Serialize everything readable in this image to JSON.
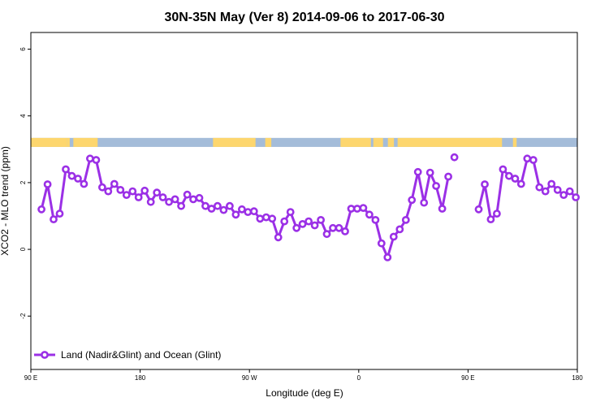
{
  "chart_data": {
    "type": "line",
    "title": "30N-35N May (Ver 8)   2014-09-06 to 2017-06-30",
    "xlabel": "Longitude (deg E)",
    "ylabel": "XCO2 - MLO trend (ppm)",
    "xlim": [
      90,
      540
    ],
    "ylim": [
      -3.6,
      6.5
    ],
    "x_ticks": [
      {
        "value": 90,
        "label": "90 E"
      },
      {
        "value": 180,
        "label": "180"
      },
      {
        "value": 270,
        "label": "90 W"
      },
      {
        "value": 360,
        "label": "0"
      },
      {
        "value": 450,
        "label": "90 E"
      },
      {
        "value": 540,
        "label": "180"
      }
    ],
    "y_ticks": [
      {
        "value": -2,
        "label": "-2"
      },
      {
        "value": 0,
        "label": "0"
      },
      {
        "value": 2,
        "label": "2"
      },
      {
        "value": 4,
        "label": "4"
      },
      {
        "value": 6,
        "label": "6"
      }
    ],
    "grid": false,
    "legend_position": "bottom-left",
    "land_ocean_band": {
      "y_range": [
        3.07,
        3.34
      ],
      "land_color": "#fdd66e",
      "ocean_color": "#a4bcd9",
      "land_segments": [
        [
          90,
          120
        ],
        [
          120,
          122
        ],
        [
          125,
          145
        ],
        [
          240,
          275
        ],
        [
          283,
          288
        ],
        [
          345,
          370
        ],
        [
          372,
          380
        ],
        [
          384,
          389
        ],
        [
          392,
          478
        ],
        [
          470,
          475
        ],
        [
          487,
          490
        ]
      ]
    },
    "series": [
      {
        "name": "Land (Nadir&Glint) and Ocean (Glint)",
        "color": "#9b30e6",
        "segments": [
          {
            "x": [
              98.75,
              103.75,
              108.75,
              113.75,
              118.75,
              123.75,
              128.75,
              133.75,
              138.75,
              143.75,
              148.75,
              153.75,
              158.75,
              163.75,
              168.75,
              173.75,
              178.75,
              183.75,
              188.75,
              193.75,
              198.75,
              203.75,
              208.75,
              213.75,
              218.75,
              223.75,
              228.75,
              233.75,
              238.75,
              243.75,
              248.75,
              253.75,
              258.75,
              263.75,
              268.75,
              273.75,
              278.75,
              283.75,
              288.75,
              293.75,
              298.75,
              303.75,
              308.75,
              313.75,
              318.75,
              323.75,
              328.75,
              333.75,
              338.75,
              343.75,
              348.75,
              353.75,
              358.75,
              363.75,
              368.75,
              373.75,
              378.75,
              383.75,
              388.75,
              393.75,
              398.75,
              403.75,
              408.75,
              413.75,
              418.75,
              423.75,
              428.75,
              433.75
            ],
            "y": [
              1.2,
              1.95,
              0.9,
              1.07,
              2.4,
              2.2,
              2.12,
              1.96,
              2.72,
              2.68,
              1.86,
              1.74,
              1.96,
              1.78,
              1.63,
              1.74,
              1.56,
              1.76,
              1.42,
              1.7,
              1.56,
              1.42,
              1.5,
              1.3,
              1.64,
              1.5,
              1.54,
              1.3,
              1.22,
              1.3,
              1.18,
              1.3,
              1.04,
              1.2,
              1.12,
              1.14,
              0.92,
              0.96,
              0.92,
              0.36,
              0.84,
              1.12,
              0.64,
              0.76,
              0.84,
              0.72,
              0.88,
              0.46,
              0.64,
              0.64,
              0.54,
              1.22,
              1.22,
              1.24,
              1.04,
              0.88,
              0.18,
              -0.24,
              0.38,
              0.6,
              0.88,
              1.48,
              2.32,
              1.4,
              2.3,
              1.9,
              1.22,
              2.18
            ]
          },
          {
            "x": [
              438.75
            ],
            "y": [
              2.76
            ]
          },
          {
            "x": [
              458.75,
              463.75,
              468.75,
              473.75,
              478.75,
              483.75,
              488.75,
              493.75,
              498.75,
              503.75,
              508.75,
              513.75,
              518.75,
              523.75,
              528.75,
              533.75,
              538.75
            ],
            "y": [
              1.2,
              1.95,
              0.9,
              1.07,
              2.4,
              2.2,
              2.12,
              1.96,
              2.72,
              2.68,
              1.86,
              1.74,
              1.96,
              1.78,
              1.63,
              1.74,
              1.56
            ]
          }
        ]
      }
    ]
  }
}
